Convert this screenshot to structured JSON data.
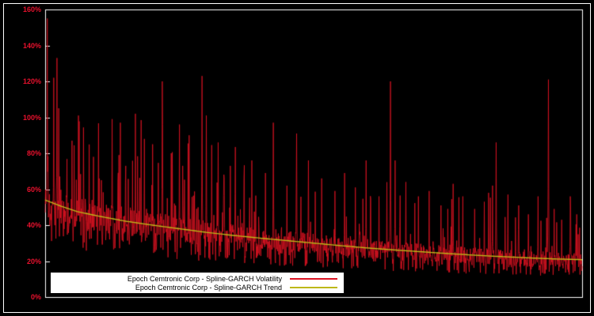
{
  "figure": {
    "background": "#000000",
    "frame_color": "#ffffff",
    "plot_border_color": "#ffffff"
  },
  "chart_data": {
    "type": "line",
    "title": "",
    "xlabel": "",
    "ylabel": "",
    "ylim": [
      0,
      160
    ],
    "ytick_step": 20,
    "ytick_labels": [
      "0%",
      "20%",
      "40%",
      "60%",
      "80%",
      "100%",
      "120%",
      "140%",
      "160%"
    ],
    "ytick_color": "#e8112d",
    "grid": false,
    "x_range": [
      0,
      1
    ],
    "legend_position": "bottom-center",
    "series": [
      {
        "name": "Epoch Cemtronic Corp - Spline-GARCH Volatility",
        "color": "#dc1322",
        "line_width": 0.8,
        "role": "volatility"
      },
      {
        "name": "Epoch Cemtronic Corp - Spline-GARCH Trend",
        "color": "#bdb818",
        "line_width": 1.4,
        "role": "trend"
      }
    ],
    "trend_keypoints": [
      [
        0,
        54
      ],
      [
        0.03,
        50.5
      ],
      [
        0.06,
        47.5
      ],
      [
        0.1,
        45
      ],
      [
        0.15,
        42.2
      ],
      [
        0.2,
        40
      ],
      [
        0.25,
        38
      ],
      [
        0.3,
        36
      ],
      [
        0.35,
        34.3
      ],
      [
        0.4,
        32.8
      ],
      [
        0.45,
        31.4
      ],
      [
        0.5,
        30
      ],
      [
        0.55,
        28.6
      ],
      [
        0.6,
        27.3
      ],
      [
        0.65,
        26.2
      ],
      [
        0.7,
        25.2
      ],
      [
        0.75,
        24.2
      ],
      [
        0.8,
        23.3
      ],
      [
        0.85,
        22.5
      ],
      [
        0.9,
        21.8
      ],
      [
        0.95,
        21.2
      ],
      [
        1,
        20.8
      ]
    ],
    "volatility_spikes": [
      [
        0.004,
        155
      ],
      [
        0.016,
        122
      ],
      [
        0.022,
        133
      ],
      [
        0.05,
        87
      ],
      [
        0.062,
        101
      ],
      [
        0.09,
        78
      ],
      [
        0.105,
        65
      ],
      [
        0.125,
        99
      ],
      [
        0.14,
        97
      ],
      [
        0.15,
        73
      ],
      [
        0.168,
        102
      ],
      [
        0.185,
        88
      ],
      [
        0.2,
        85
      ],
      [
        0.218,
        120
      ],
      [
        0.235,
        80
      ],
      [
        0.25,
        96
      ],
      [
        0.268,
        90
      ],
      [
        0.292,
        123
      ],
      [
        0.3,
        101
      ],
      [
        0.322,
        86
      ],
      [
        0.345,
        73
      ],
      [
        0.37,
        66
      ],
      [
        0.385,
        76
      ],
      [
        0.41,
        69
      ],
      [
        0.425,
        97
      ],
      [
        0.45,
        62
      ],
      [
        0.468,
        91
      ],
      [
        0.49,
        76
      ],
      [
        0.515,
        66
      ],
      [
        0.54,
        59
      ],
      [
        0.558,
        69
      ],
      [
        0.578,
        61
      ],
      [
        0.598,
        76
      ],
      [
        0.622,
        56
      ],
      [
        0.643,
        120
      ],
      [
        0.652,
        76
      ],
      [
        0.672,
        64
      ],
      [
        0.695,
        56
      ],
      [
        0.715,
        59
      ],
      [
        0.737,
        51
      ],
      [
        0.76,
        63
      ],
      [
        0.778,
        56
      ],
      [
        0.8,
        49
      ],
      [
        0.818,
        53
      ],
      [
        0.826,
        58
      ],
      [
        0.833,
        62
      ],
      [
        0.84,
        86
      ],
      [
        0.862,
        57
      ],
      [
        0.882,
        51
      ],
      [
        0.9,
        46
      ],
      [
        0.918,
        56
      ],
      [
        0.937,
        121
      ],
      [
        0.948,
        49
      ],
      [
        0.962,
        43
      ],
      [
        0.978,
        56
      ],
      [
        0.99,
        46
      ]
    ],
    "noise": {
      "seed": 1337,
      "points": 1500,
      "min": 12,
      "max": 157
    }
  }
}
